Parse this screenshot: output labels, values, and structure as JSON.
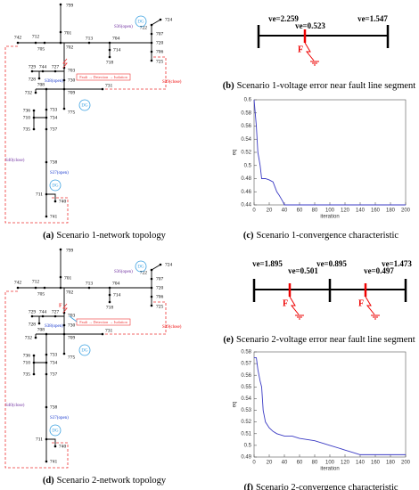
{
  "topology_a": {
    "nodes": [
      "799",
      "701",
      "712",
      "742",
      "705",
      "702",
      "713",
      "704",
      "714",
      "718",
      "720",
      "707",
      "722",
      "724",
      "706",
      "725",
      "703",
      "727",
      "744",
      "729",
      "728",
      "730",
      "709",
      "708",
      "731",
      "732",
      "733",
      "734",
      "710",
      "736",
      "735",
      "737",
      "738",
      "711",
      "740",
      "741",
      "775"
    ],
    "switches": [
      "S36(open)",
      "S39(close)",
      "S40(close)",
      "S37(open)",
      "S38(open)"
    ],
    "dg": [
      "DG",
      "DG",
      "DG"
    ],
    "process": "Fault → Detection → Isolation",
    "caption": {
      "label": "(a)",
      "text": "Scenario 1-network topology"
    }
  },
  "topology_d": {
    "nodes": [
      "799",
      "701",
      "712",
      "742",
      "705",
      "702",
      "713",
      "704",
      "714",
      "718",
      "720",
      "707",
      "722",
      "724",
      "706",
      "725",
      "703",
      "727",
      "744",
      "729",
      "728",
      "730",
      "709",
      "708",
      "731",
      "732",
      "733",
      "734",
      "710",
      "736",
      "735",
      "737",
      "738",
      "711",
      "740",
      "741",
      "775"
    ],
    "switches": [
      "S36(open)",
      "S39(close)",
      "S40(close)",
      "S37(open)",
      "S38(open)"
    ],
    "dg": [
      "DG",
      "DG",
      "DG"
    ],
    "fault": "F",
    "process": "Fault → Detection → Isolation",
    "caption": {
      "label": "(d)",
      "text": "Scenario 2-network topology"
    }
  },
  "voltage_b": {
    "labels": [
      "ve=2.259",
      "ve=0.523",
      "ve=1.547"
    ],
    "faults": [
      "F"
    ],
    "caption": {
      "label": "(b)",
      "text": "Scenario 1-voltage error near fault line segment"
    }
  },
  "voltage_e": {
    "labels": [
      "ve=1.895",
      "ve=0.501",
      "ve=0.895",
      "ve=0.497",
      "ve=1.473"
    ],
    "faults": [
      "F",
      "F"
    ],
    "caption": {
      "label": "(e)",
      "text": "Scenario 2-voltage error near fault line segment"
    }
  },
  "chart_data": [
    {
      "type": "line",
      "xlabel": "iteration",
      "ylabel": "eq",
      "x": [
        0,
        3,
        5,
        8,
        10,
        15,
        20,
        25,
        30,
        33,
        38,
        40,
        60,
        100,
        150,
        200
      ],
      "series": [
        {
          "color": "#3b3bc4",
          "values": [
            0.6,
            0.56,
            0.52,
            0.5,
            0.48,
            0.48,
            0.478,
            0.475,
            0.46,
            0.455,
            0.445,
            0.44,
            0.44,
            0.44,
            0.44,
            0.44
          ]
        }
      ],
      "xlim": [
        0,
        200
      ],
      "ylim": [
        0.44,
        0.6
      ],
      "xticks": [
        0,
        20,
        40,
        60,
        80,
        100,
        120,
        140,
        160,
        180,
        200
      ],
      "yticks": [
        0.44,
        0.46,
        0.48,
        0.5,
        0.52,
        0.54,
        0.56,
        0.58,
        0.6
      ],
      "caption": {
        "label": "(c)",
        "text": "Scenario 1-convergence characteristic"
      }
    },
    {
      "type": "line",
      "xlabel": "iteration",
      "ylabel": "eq",
      "x": [
        0,
        3,
        5,
        8,
        10,
        12,
        15,
        20,
        25,
        30,
        40,
        50,
        60,
        80,
        100,
        120,
        140,
        160,
        200
      ],
      "series": [
        {
          "color": "#3b3bc4",
          "values": [
            0.575,
            0.575,
            0.565,
            0.555,
            0.55,
            0.53,
            0.52,
            0.515,
            0.512,
            0.51,
            0.508,
            0.508,
            0.506,
            0.504,
            0.5,
            0.496,
            0.492,
            0.492,
            0.492
          ]
        }
      ],
      "xlim": [
        0,
        200
      ],
      "ylim": [
        0.49,
        0.58
      ],
      "xticks": [
        0,
        20,
        40,
        60,
        80,
        100,
        120,
        140,
        160,
        180,
        200
      ],
      "yticks": [
        0.49,
        0.5,
        0.51,
        0.52,
        0.53,
        0.54,
        0.55,
        0.56,
        0.57,
        0.58
      ],
      "caption": {
        "label": "(f)",
        "text": "Scenario 2-convergence characteristic"
      }
    }
  ]
}
